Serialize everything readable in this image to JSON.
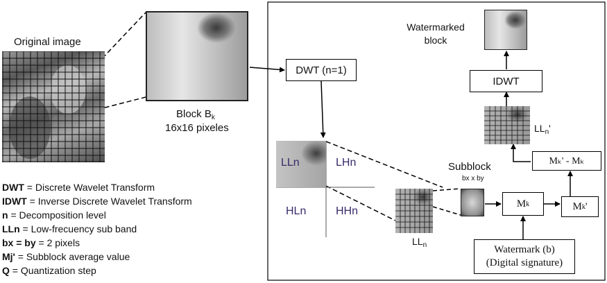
{
  "labels": {
    "original_image": "Original image",
    "block_title": "Block B",
    "block_title_sub": "k",
    "block_size": "16x16 pixeles",
    "dwt_box": "DWT (n=1)",
    "idwt_box": "IDWT",
    "watermarked_line1": "Watermarked",
    "watermarked_line2": "block",
    "lln_quad": "LLn",
    "lhn_quad": "LHn",
    "hln_quad": "HLn",
    "hhn_quad": "HHn",
    "subblock_title": "Subblock",
    "subblock_dims": "bx x by",
    "lln_small_base": "LL",
    "lln_small_sub": "n",
    "lln_prime_base": "LL",
    "lln_prime_sub": "n",
    "lln_prime_mark": "'",
    "mk_box_base": "M",
    "mk_box_sub": "k",
    "mk_prime_base": "M",
    "mk_prime_sub": "k",
    "mk_prime_mark": "'",
    "mk_diff": "Mₖ' - Mₖ",
    "watermark_line1": "Watermark (b)",
    "watermark_line2": "(Digital signature)"
  },
  "legend": [
    {
      "term": "DWT",
      "desc": " = Discrete Wavelet Transform"
    },
    {
      "term": "IDWT",
      "desc": " = Inverse Discrete Wavelet Transform"
    },
    {
      "term": "n",
      "desc": " = Decomposition level"
    },
    {
      "term": "LLn",
      "desc": " = Low-frecuency sub band"
    },
    {
      "term": "bx = by",
      "desc": " = 2 pixels"
    },
    {
      "term": "Mj'",
      "desc": " = Subblock average value"
    },
    {
      "term": "Q",
      "desc": " = Quantization step"
    }
  ]
}
